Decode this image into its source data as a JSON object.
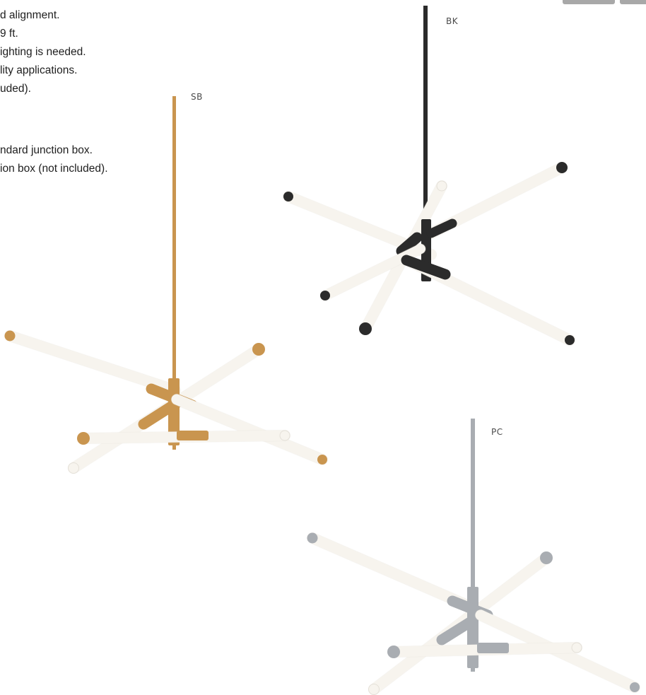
{
  "spec_text": {
    "line1": "d alignment.",
    "line2": "9 ft.",
    "line3": "ighting is needed.",
    "line4": "lity applications.",
    "line5": "uded).",
    "line6": "ndard junction box.",
    "line7": "ion box (not included)."
  },
  "variants": [
    {
      "code": "SB",
      "finish_color": "#c9954f"
    },
    {
      "code": "BK",
      "finish_color": "#2b2b2b"
    },
    {
      "code": "PC",
      "finish_color": "#a9adb2"
    }
  ],
  "colors": {
    "diffuser": "#f7f4ee",
    "diffuser_edge": "#e4e0d8",
    "corner_buttons": "#a8a8a8"
  }
}
